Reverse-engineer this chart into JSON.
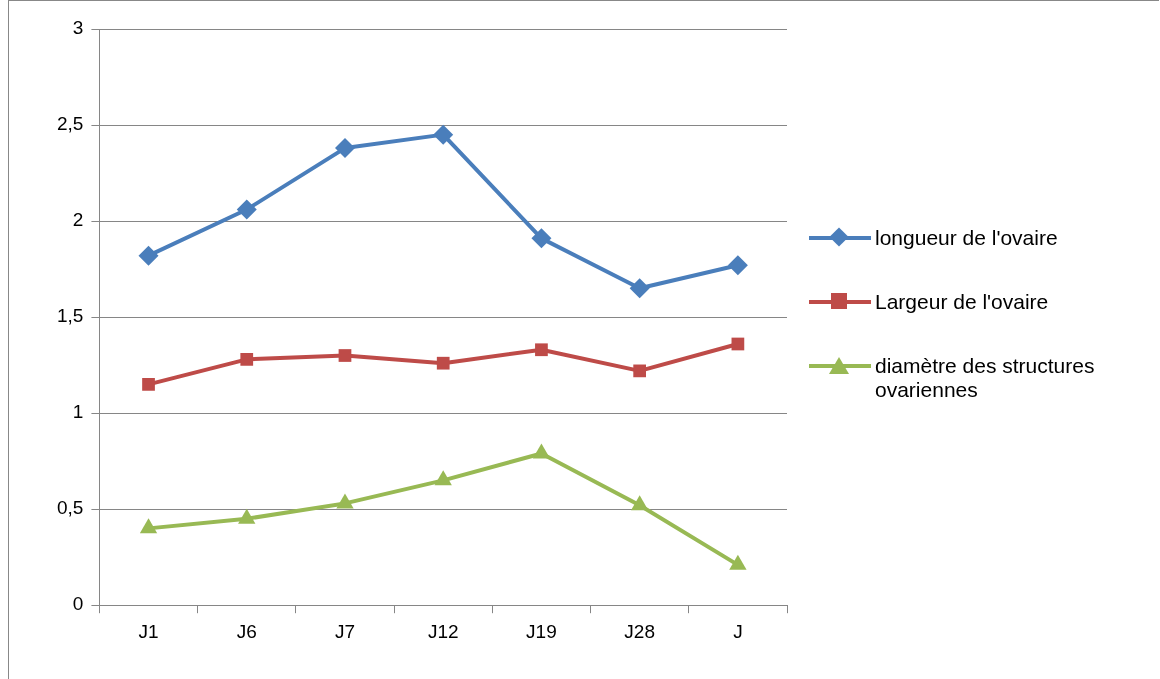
{
  "chart_data": {
    "type": "line",
    "categories": [
      "J1",
      "J6",
      "J7",
      "J12",
      "J19",
      "J28",
      "J"
    ],
    "series": [
      {
        "name": "longueur de l'ovaire",
        "color": "#4a7ebb",
        "marker": "diamond",
        "values": [
          1.82,
          2.06,
          2.38,
          2.45,
          1.91,
          1.65,
          1.77
        ]
      },
      {
        "name": "Largeur de l'ovaire",
        "color": "#be4b48",
        "marker": "square",
        "values": [
          1.15,
          1.28,
          1.3,
          1.26,
          1.33,
          1.22,
          1.36
        ]
      },
      {
        "name": "diamètre des structures ovariennes",
        "color": "#98b954",
        "marker": "triangle",
        "values": [
          0.4,
          0.45,
          0.53,
          0.65,
          0.79,
          0.52,
          0.21
        ]
      }
    ],
    "ylim": [
      0,
      3
    ],
    "yticks": [
      0,
      {
        "value": 0.5,
        "label": "0,5"
      },
      1,
      {
        "value": 1.5,
        "label": "1,5"
      },
      2,
      {
        "value": 2.5,
        "label": "2,5"
      },
      3
    ],
    "grid": "y",
    "legend": "right",
    "line_style": "solid"
  }
}
